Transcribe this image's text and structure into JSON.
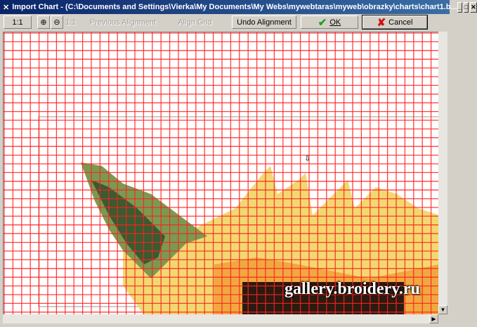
{
  "window": {
    "title": "Import Chart - (C:\\Documents and Settings\\Vierka\\My Documents\\My Webs\\mywebtaras\\myweb\\obrazky\\charts\\chart1.b..."
  },
  "toolbar": {
    "zoom_actual": "1:1",
    "zoom_in_icon": "zoom-in-icon",
    "zoom_out_icon": "zoom-out-icon",
    "fit_label": "1:1",
    "previous_alignment": "Previous Alignment",
    "align_grid": "Align Grid",
    "undo_alignment": "Undo Alignment",
    "ok": "OK",
    "cancel": "Cancel"
  },
  "canvas": {
    "watermark": "gallery.broidery.ru",
    "grid_color": "#ff0000"
  },
  "colors": {
    "title_bar": "#0a246a",
    "ok_check": "#20a020",
    "cancel_x": "#d01010"
  }
}
